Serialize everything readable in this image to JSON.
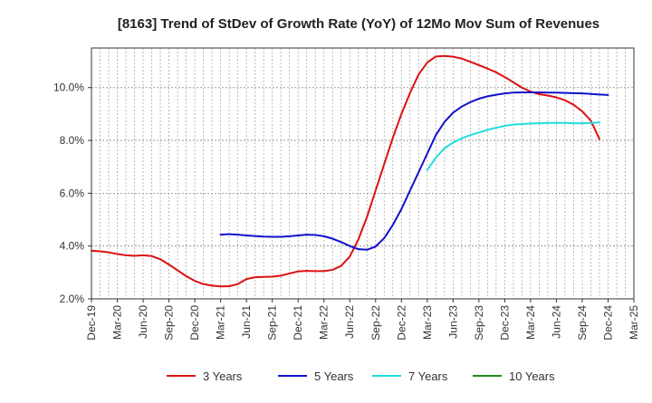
{
  "chart_data": {
    "type": "line",
    "title": "[8163]  Trend of StDev of Growth Rate (YoY) of 12Mo Mov Sum of Revenues",
    "xlabel": "",
    "ylabel": "",
    "ylim": [
      2.0,
      11.5
    ],
    "y_ticks": [
      2.0,
      4.0,
      6.0,
      8.0,
      10.0
    ],
    "y_tick_labels": [
      "2.0%",
      "4.0%",
      "6.0%",
      "8.0%",
      "10.0%"
    ],
    "x_tick_labels": [
      "Dec-19",
      "Mar-20",
      "Jun-20",
      "Sep-20",
      "Dec-20",
      "Mar-21",
      "Jun-21",
      "Sep-21",
      "Dec-21",
      "Mar-22",
      "Jun-22",
      "Sep-22",
      "Dec-22",
      "Mar-23",
      "Jun-23",
      "Sep-23",
      "Dec-23",
      "Mar-24",
      "Jun-24",
      "Sep-24",
      "Dec-24",
      "Mar-25"
    ],
    "x_range_months": [
      0,
      63
    ],
    "grid": true,
    "legend_position": "bottom",
    "series": [
      {
        "name": "3 Years",
        "color": "#dd1111",
        "start_month": 0,
        "values": [
          3.82,
          3.8,
          3.76,
          3.7,
          3.65,
          3.63,
          3.65,
          3.62,
          3.5,
          3.3,
          3.08,
          2.86,
          2.68,
          2.56,
          2.5,
          2.47,
          2.48,
          2.56,
          2.75,
          2.82,
          2.83,
          2.84,
          2.88,
          2.96,
          3.04,
          3.06,
          3.05,
          3.05,
          3.1,
          3.25,
          3.6,
          4.25,
          5.1,
          6.1,
          7.1,
          8.1,
          9.0,
          9.8,
          10.5,
          10.95,
          11.18,
          11.2,
          11.17,
          11.1,
          10.98,
          10.85,
          10.72,
          10.58,
          10.4,
          10.2,
          10.0,
          9.85,
          9.75,
          9.7,
          9.63,
          9.52,
          9.35,
          9.1,
          8.75,
          8.05
        ]
      },
      {
        "name": "5 Years",
        "color": "#1111cc",
        "start_month": 15,
        "values": [
          4.43,
          4.45,
          4.43,
          4.4,
          4.38,
          4.36,
          4.35,
          4.35,
          4.37,
          4.4,
          4.43,
          4.42,
          4.37,
          4.28,
          4.15,
          4.0,
          3.88,
          3.86,
          3.98,
          4.3,
          4.8,
          5.4,
          6.1,
          6.8,
          7.5,
          8.2,
          8.7,
          9.05,
          9.28,
          9.45,
          9.58,
          9.67,
          9.73,
          9.78,
          9.81,
          9.82,
          9.82,
          9.82,
          9.81,
          9.81,
          9.8,
          9.79,
          9.78,
          9.76,
          9.74,
          9.72
        ]
      },
      {
        "name": "7 Years",
        "color": "#22dddd",
        "start_month": 39,
        "values": [
          6.88,
          7.35,
          7.7,
          7.92,
          8.08,
          8.2,
          8.3,
          8.4,
          8.48,
          8.55,
          8.6,
          8.62,
          8.64,
          8.65,
          8.66,
          8.66,
          8.66,
          8.65,
          8.65,
          8.66,
          8.68
        ]
      },
      {
        "name": "10 Years",
        "color": "#228b22",
        "start_month": 0,
        "values": []
      }
    ]
  }
}
